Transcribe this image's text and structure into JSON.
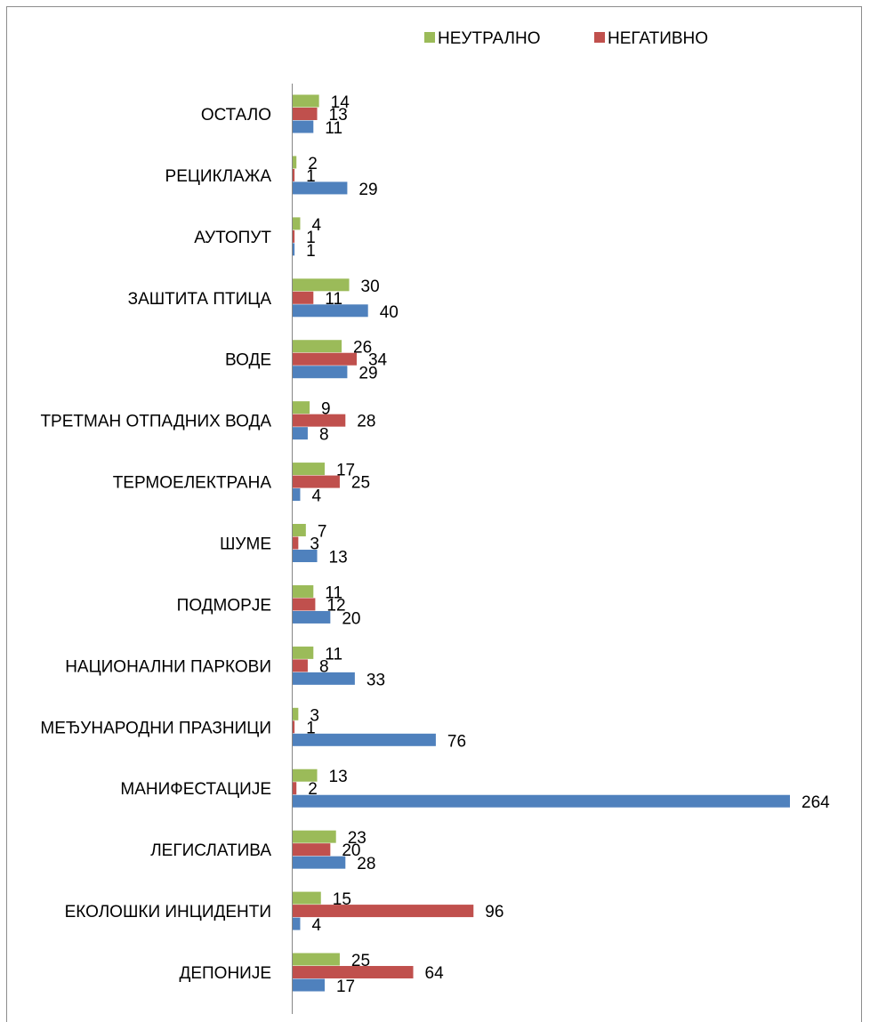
{
  "chart_data": {
    "type": "bar",
    "orientation": "horizontal",
    "categories": [
      "ОСТАЛО",
      "РЕЦИКЛАЖА",
      "АУТОПУТ",
      "ЗАШТИТА ПТИЦА",
      "ВОДЕ",
      "ТРЕТМАН ОТПАДНИХ ВОДА",
      "ТЕРМОЕЛЕКТРАНА",
      "ШУМЕ",
      "ПОДМОРЈЕ",
      "НАЦИОНАЛНИ ПАРКОВИ",
      "МЕЂУНАРОДНИ ПРАЗНИЦИ",
      "МАНИФЕСТАЦИЈЕ",
      "ЛЕГИСЛАТИВА",
      "ЕКОЛОШКИ ИНЦИДЕНТИ",
      "ДЕПОНИЈЕ"
    ],
    "series": [
      {
        "name": "НЕУТРАЛНО",
        "color": "#9bbb59",
        "values": [
          14,
          2,
          4,
          30,
          26,
          9,
          17,
          7,
          11,
          11,
          3,
          13,
          23,
          15,
          25
        ]
      },
      {
        "name": "НЕГАТИВНО",
        "color": "#c0504d",
        "values": [
          13,
          1,
          1,
          11,
          34,
          28,
          25,
          3,
          12,
          8,
          1,
          2,
          20,
          96,
          64
        ]
      },
      {
        "values": [
          11,
          29,
          1,
          40,
          29,
          8,
          4,
          13,
          20,
          33,
          76,
          264,
          28,
          4,
          17
        ],
        "color": "#4f81bd"
      }
    ],
    "title": "",
    "xlabel": "",
    "ylabel": "",
    "xlim": [
      0,
      264
    ],
    "grid": false,
    "legend_position": "top-right",
    "data_labels": true
  }
}
